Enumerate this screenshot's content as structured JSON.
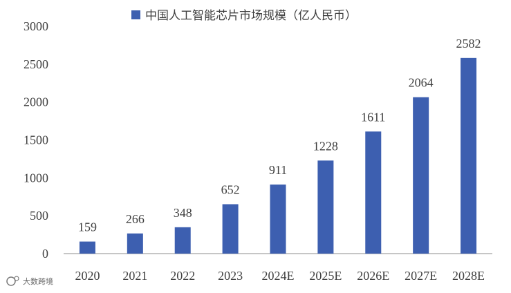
{
  "chart_data": {
    "type": "bar",
    "categories": [
      "2020",
      "2021",
      "2022",
      "2023",
      "2024E",
      "2025E",
      "2026E",
      "2027E",
      "2028E"
    ],
    "series": [
      {
        "name": "中国人工智能芯片市场规模（亿人民币）",
        "values": [
          159,
          266,
          348,
          652,
          911,
          1228,
          1611,
          2064,
          2582
        ],
        "color": "#3d5fb0"
      }
    ],
    "y_ticks": [
      0,
      500,
      1000,
      1500,
      2000,
      2500,
      3000
    ],
    "ylim": [
      0,
      3000
    ],
    "grid": false,
    "legend_position": "top",
    "xlabel": "",
    "ylabel": ""
  },
  "footer": {
    "logo_text": "大数跨境",
    "icon": "brand-logo-icon"
  }
}
